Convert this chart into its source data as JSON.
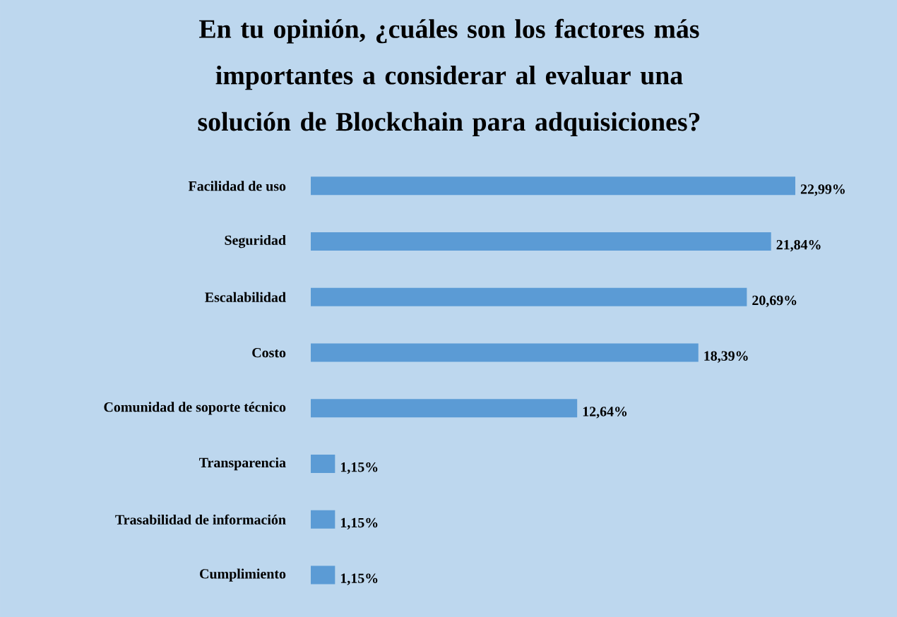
{
  "chart_data": {
    "type": "bar",
    "orientation": "horizontal",
    "title": "En tu opinión, ¿cuáles son los factores más importantes a considerar al evaluar una solución de Blockchain para adquisiciones?",
    "categories": [
      "Facilidad de uso",
      "Seguridad",
      "Escalabilidad",
      "Costo",
      "Comunidad de soporte técnico",
      "Transparencia",
      "Trasabilidad de información",
      "Cumplimiento"
    ],
    "values": [
      22.99,
      21.84,
      20.69,
      18.39,
      12.64,
      1.15,
      1.15,
      1.15
    ],
    "value_labels": [
      "22,99%",
      "21,84%",
      "20,69%",
      "18,39%",
      "12,64%",
      "1,15%",
      "1,15%",
      "1,15%"
    ],
    "color": "#5b9bd5"
  }
}
